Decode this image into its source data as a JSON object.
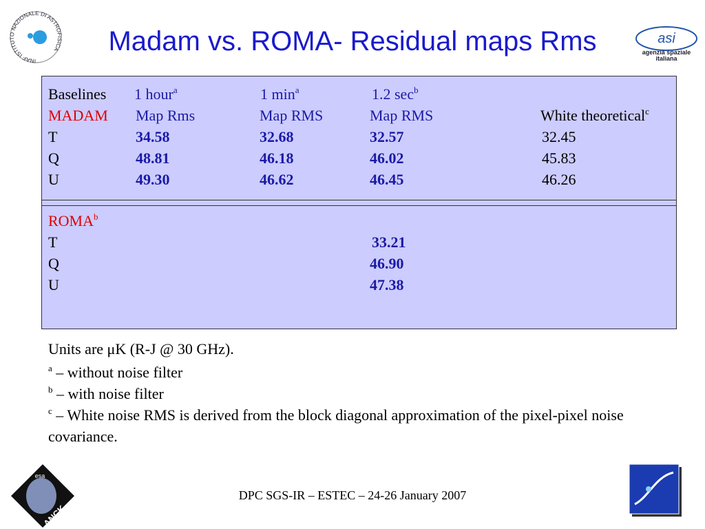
{
  "header": {
    "title": "Madam vs. ROMA- Residual maps Rms"
  },
  "logos": {
    "inaf": "INAF ISTITUTO NAZIONALE DI ASTROFISICA",
    "asi": "asi",
    "asi_name": "agenzia spaziale",
    "asi_name2": "italiana",
    "esa": "esa",
    "planck": "PLANCK"
  },
  "table": {
    "columns": [
      {
        "text": "Baselines"
      },
      {
        "text": "1 hour",
        "note": "a"
      },
      {
        "text": "1 min",
        "note": "a"
      },
      {
        "text": "1.2 sec",
        "note": "b"
      }
    ],
    "madam": {
      "label": "MADAM",
      "subheaders": [
        "Map Rms",
        "Map RMS",
        "Map RMS"
      ],
      "theoretical_header": {
        "text": "White theoretical",
        "note": "c"
      },
      "rows": [
        {
          "label": "T",
          "values": [
            "34.58",
            "32.68",
            "32.57"
          ],
          "theoretical": "32.45"
        },
        {
          "label": "Q",
          "values": [
            "48.81",
            "46.18",
            "46.02"
          ],
          "theoretical": "45.83"
        },
        {
          "label": "U",
          "values": [
            "49.30",
            "46.62",
            "46.45"
          ],
          "theoretical": "46.26"
        }
      ]
    },
    "roma": {
      "label": "ROMA",
      "note": "b",
      "rows": [
        {
          "label": "T",
          "value": "33.21"
        },
        {
          "label": "Q",
          "value": "46.90"
        },
        {
          "label": "U",
          "value": "47.38"
        }
      ]
    }
  },
  "notes": {
    "units": "Units are  μK (R-J @ 30 GHz).",
    "footnotes": [
      {
        "mark": "a",
        "text": " – without noise filter"
      },
      {
        "mark": "b",
        "text": " – with noise filter"
      },
      {
        "mark": "c",
        "text": " – White noise RMS is derived from the block diagonal approximation of the pixel-pixel noise covariance."
      }
    ]
  },
  "footer": "DPC SGS-IR – ESTEC – 24-26 January 2007"
}
